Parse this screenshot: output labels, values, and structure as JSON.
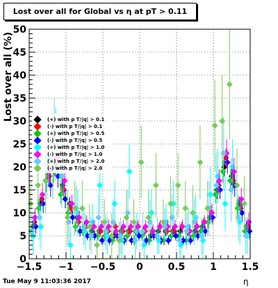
{
  "title": "Lost over all for Global vs   η at pT > 0.11",
  "timestamp": "Tue May  9 11:03:36 2017",
  "chart_data": {
    "type": "scatter",
    "title": "Lost over all for Global vs   η at pT > 0.11",
    "xlabel": "η",
    "ylabel": "Lost over all (%)",
    "xlim": [
      -1.5,
      1.5
    ],
    "ylim": [
      0,
      50
    ],
    "x_ticks": [
      -1.5,
      -1,
      -0.5,
      0,
      0.5,
      1,
      1.5
    ],
    "x_tick_labels": [
      "−1.5",
      "−1",
      "−0.5",
      "0",
      "0.5",
      "1",
      "1.5"
    ],
    "y_ticks": [
      0,
      5,
      10,
      15,
      20,
      25,
      30,
      35,
      40,
      45,
      50
    ],
    "y_tick_labels": [
      "0",
      "5",
      "10",
      "15",
      "20",
      "25",
      "30",
      "35",
      "40",
      "45",
      "50"
    ],
    "grid": true,
    "legend_position": "left",
    "series": [
      {
        "name": "(+) with p T/|q| > 0.1",
        "color": "#000000",
        "x": [
          -1.45,
          -1.35,
          -1.25,
          -1.15,
          -1.05,
          -0.95,
          -0.85,
          -0.75,
          -0.65,
          -0.55,
          -0.45,
          -0.35,
          -0.25,
          -0.15,
          -0.05,
          0.05,
          0.15,
          0.25,
          0.35,
          0.45,
          0.55,
          0.65,
          0.75,
          0.85,
          0.95,
          1.05,
          1.15,
          1.25,
          1.35,
          1.45
        ],
        "y": [
          7,
          12,
          19,
          20,
          16,
          12,
          9,
          7,
          6,
          6,
          6,
          5,
          6,
          6,
          6,
          6,
          5,
          6,
          6,
          6,
          6,
          6,
          6,
          7,
          9,
          15,
          20,
          18,
          12,
          7
        ],
        "err": [
          1,
          1.5,
          2,
          2,
          2,
          1.5,
          1,
          1,
          1,
          1,
          1,
          1,
          1,
          1,
          1,
          1,
          1,
          1,
          1,
          1,
          1,
          1,
          1,
          1,
          1.5,
          2,
          2,
          2,
          1.5,
          1
        ]
      },
      {
        "name": "(-) with p T/|q| > 0.1",
        "color": "#ff0000",
        "x": [
          -1.43,
          -1.33,
          -1.23,
          -1.13,
          -1.03,
          -0.93,
          -0.83,
          -0.73,
          -0.63,
          -0.53,
          -0.43,
          -0.33,
          -0.23,
          -0.13,
          -0.03,
          0.07,
          0.17,
          0.27,
          0.37,
          0.47,
          0.57,
          0.67,
          0.77,
          0.87,
          0.97,
          1.07,
          1.17,
          1.27,
          1.37,
          1.47
        ],
        "y": [
          8,
          13,
          18,
          21,
          15,
          11,
          8,
          7,
          7,
          6,
          6,
          7,
          6,
          6,
          7,
          6,
          6,
          7,
          6,
          6,
          7,
          6,
          7,
          8,
          10,
          16,
          22,
          17,
          11,
          7
        ],
        "err": [
          1,
          1.5,
          2,
          2,
          2,
          1.5,
          1,
          1,
          1,
          1,
          1,
          1,
          1,
          1,
          1,
          1,
          1,
          1,
          1,
          1,
          1,
          1,
          1,
          1,
          1.5,
          2,
          2,
          2,
          1.5,
          1
        ]
      },
      {
        "name": "(+) with p T/|q| > 0.5",
        "color": "#00cc00",
        "x": [
          -1.47,
          -1.37,
          -1.27,
          -1.17,
          -1.07,
          -0.97,
          -0.87,
          -0.77,
          -0.67,
          -0.57,
          -0.47,
          -0.37,
          -0.27,
          -0.17,
          -0.07,
          0.03,
          0.13,
          0.23,
          0.33,
          0.43,
          0.53,
          0.63,
          0.73,
          0.83,
          0.93,
          1.03,
          1.13,
          1.23,
          1.33,
          1.43
        ],
        "y": [
          6,
          11,
          17,
          19,
          14,
          10,
          7,
          6,
          5,
          5,
          5,
          4,
          5,
          5,
          4,
          5,
          4,
          5,
          4,
          5,
          5,
          4,
          5,
          6,
          8,
          14,
          19,
          17,
          11,
          6
        ],
        "err": [
          1.5,
          2,
          2.5,
          2.5,
          2,
          1.5,
          1.2,
          1,
          1,
          1,
          1,
          1,
          1,
          1,
          1,
          1,
          1,
          1,
          1,
          1,
          1,
          1,
          1,
          1.2,
          1.5,
          2,
          2.5,
          2.5,
          2,
          1.5
        ]
      },
      {
        "name": "(-) with p T/|q| > 0.5",
        "color": "#0000ff",
        "x": [
          -1.41,
          -1.31,
          -1.21,
          -1.11,
          -1.01,
          -0.91,
          -0.81,
          -0.71,
          -0.61,
          -0.51,
          -0.41,
          -0.31,
          -0.21,
          -0.11,
          -0.01,
          0.09,
          0.19,
          0.29,
          0.39,
          0.49,
          0.59,
          0.69,
          0.79,
          0.89,
          0.99,
          1.09,
          1.19,
          1.29,
          1.39,
          1.49
        ],
        "y": [
          7,
          12,
          16,
          18,
          13,
          9,
          6,
          5,
          5,
          4,
          4,
          5,
          4,
          4,
          5,
          4,
          5,
          4,
          4,
          5,
          4,
          4,
          5,
          6,
          9,
          15,
          21,
          16,
          10,
          6
        ],
        "err": [
          1.5,
          2,
          2.5,
          2.5,
          2,
          1.5,
          1.2,
          1,
          1,
          1,
          1,
          1,
          1,
          1,
          1,
          1,
          1,
          1,
          1,
          1,
          1,
          1,
          1,
          1.2,
          1.5,
          2,
          2.5,
          2.5,
          2,
          1.5
        ]
      },
      {
        "name": "(+) with p T/|q| > 1.0",
        "color": "#00ffff",
        "x": [
          -1.44,
          -1.34,
          -1.24,
          -1.14,
          -1.04,
          -0.94,
          -0.84,
          -0.74,
          -0.64,
          -0.54,
          -0.44,
          -0.34,
          -0.24,
          -0.14,
          -0.04,
          0.06,
          0.16,
          0.26,
          0.36,
          0.46,
          0.56,
          0.66,
          0.76,
          0.86,
          0.96,
          1.06,
          1.16,
          1.26,
          1.36,
          1.46
        ],
        "y": [
          5,
          7,
          22,
          25,
          20,
          3,
          10,
          6,
          8,
          16,
          5,
          12,
          4,
          19,
          6,
          3,
          10,
          4,
          8,
          12,
          3,
          7,
          9,
          4,
          14,
          18,
          12,
          20,
          8,
          5
        ],
        "err": [
          4,
          5,
          6,
          8,
          6,
          4,
          5,
          4,
          4,
          6,
          4,
          5,
          4,
          6,
          4,
          3,
          5,
          3,
          4,
          5,
          3,
          4,
          5,
          4,
          6,
          6,
          6,
          6,
          5,
          4
        ]
      },
      {
        "name": "(-) with p T/|q| > 1.0",
        "color": "#ff00ff",
        "x": [
          -1.42,
          -1.32,
          -1.22,
          -1.12,
          -1.02,
          -0.92,
          -0.82,
          -0.72,
          -0.62,
          -0.52,
          -0.42,
          -0.32,
          -0.22,
          -0.12,
          -0.02,
          0.08,
          0.18,
          0.28,
          0.38,
          0.48,
          0.58,
          0.68,
          0.78,
          0.88,
          0.98,
          1.08,
          1.18,
          1.28,
          1.38,
          1.48
        ],
        "y": [
          9,
          14,
          19,
          22,
          17,
          12,
          9,
          8,
          7,
          7,
          7,
          6,
          7,
          7,
          7,
          7,
          6,
          7,
          7,
          7,
          7,
          6,
          7,
          8,
          10,
          17,
          23,
          19,
          13,
          8
        ],
        "err": [
          2,
          2.5,
          3,
          3,
          2.5,
          2,
          1.5,
          1.5,
          1.5,
          1.5,
          1.5,
          1.5,
          1.5,
          1.5,
          1.5,
          1.5,
          1.5,
          1.5,
          1.5,
          1.5,
          1.5,
          1.5,
          1.5,
          1.5,
          2,
          2.5,
          3,
          3,
          2.5,
          2
        ]
      },
      {
        "name": "(+) with p T/|q| > 2.0",
        "color": "#66ccff",
        "x": [
          -1.46,
          -1.36,
          -1.26,
          -1.16,
          -1.06,
          -0.96,
          -0.86,
          -0.76,
          -0.66,
          -0.56,
          -0.46,
          -0.36,
          -0.26,
          -0.16,
          -0.06,
          0.04,
          0.14,
          0.24,
          0.34,
          0.44,
          0.54,
          0.64,
          0.74,
          0.84,
          0.94,
          1.04,
          1.14,
          1.24,
          1.34,
          1.44
        ],
        "y": [
          6,
          9,
          20,
          27,
          18,
          8,
          11,
          7,
          5,
          9,
          6,
          8,
          5,
          10,
          4,
          6,
          8,
          5,
          7,
          9,
          4,
          6,
          8,
          5,
          11,
          16,
          23,
          15,
          9,
          5
        ],
        "err": [
          4,
          5,
          7,
          8,
          7,
          5,
          5,
          4,
          4,
          5,
          4,
          5,
          4,
          5,
          4,
          4,
          5,
          4,
          4,
          5,
          4,
          4,
          5,
          4,
          6,
          7,
          8,
          7,
          5,
          4
        ]
      },
      {
        "name": "(-) with p T/|q| > 2.0",
        "color": "#77cc55",
        "x": [
          -1.48,
          -1.38,
          -1.28,
          -1.18,
          -1.08,
          -0.98,
          -0.88,
          -0.78,
          -0.68,
          -0.58,
          -0.48,
          -0.38,
          -0.28,
          -0.18,
          -0.08,
          0.02,
          0.12,
          0.22,
          0.32,
          0.42,
          0.52,
          0.62,
          0.72,
          0.82,
          0.92,
          1.02,
          1.12,
          1.22,
          1.32,
          1.42
        ],
        "y": [
          12,
          16,
          17,
          21,
          23,
          9,
          11,
          11,
          7,
          3,
          8,
          5,
          4,
          9,
          8,
          21,
          9,
          16,
          8,
          12,
          16,
          11,
          10,
          21,
          11,
          29,
          30,
          38,
          16,
          12
        ],
        "err": [
          5,
          6,
          7,
          8,
          8,
          6,
          6,
          6,
          5,
          4,
          5,
          5,
          4,
          6,
          5,
          8,
          6,
          7,
          5,
          6,
          7,
          6,
          6,
          8,
          6,
          10,
          10,
          12,
          8,
          6
        ]
      }
    ]
  }
}
